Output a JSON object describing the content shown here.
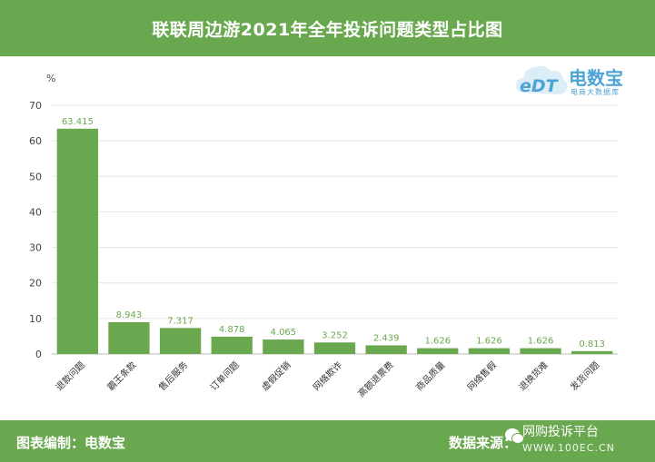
{
  "header": {
    "title": "联联周边游2021年全年投诉问题类型占比图"
  },
  "logo": {
    "name": "电数宝",
    "mark": "eDT",
    "sub": "电商大数据库"
  },
  "footer": {
    "editor": "图表编制：电数宝",
    "source": "数据来源：",
    "watermark": "网购投诉平台",
    "watermark_url": "WWW.100EC.CN"
  },
  "chart_data": {
    "type": "bar",
    "title": "联联周边游2021年全年投诉问题类型占比图",
    "ylabel": "%",
    "xlabel": "",
    "ylim": [
      0,
      70
    ],
    "yticks": [
      0,
      10,
      20,
      30,
      40,
      50,
      60,
      70
    ],
    "grid": true,
    "color": "#6aa84f",
    "categories": [
      "退款问题",
      "霸王条款",
      "售后服务",
      "订单问题",
      "虚假促销",
      "网络欺诈",
      "高额退票费",
      "商品质量",
      "网络售假",
      "退换货难",
      "发货问题"
    ],
    "values": [
      63.415,
      8.943,
      7.317,
      4.878,
      4.065,
      3.252,
      2.439,
      1.626,
      1.626,
      1.626,
      0.813
    ],
    "value_labels": [
      "63.415",
      "8.943",
      "7.317",
      "4.878",
      "4.065",
      "3.252",
      "2.439",
      "1.626",
      "1.626",
      "1.626",
      "0.813"
    ]
  }
}
